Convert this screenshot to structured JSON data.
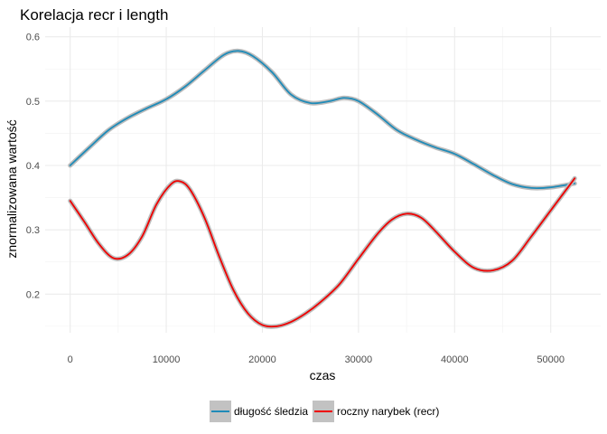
{
  "chart_data": {
    "type": "line",
    "title": "Korelacja recr i length",
    "xlabel": "czas",
    "ylabel": "znormalizowana wartość",
    "xlim": [
      -2600,
      55200
    ],
    "ylim": [
      0.14,
      0.615
    ],
    "xticks": [
      0,
      10000,
      20000,
      30000,
      40000,
      50000
    ],
    "yticks": [
      0.2,
      0.3,
      0.4,
      0.5,
      0.6
    ],
    "grid": true,
    "legend": "bottom",
    "series": [
      {
        "name": "długość śledzia",
        "color": "#1f8bb8",
        "x": [
          0,
          2000,
          4000,
          6000,
          8000,
          10000,
          12000,
          14000,
          16000,
          17500,
          19000,
          21000,
          23000,
          25000,
          27000,
          28500,
          30000,
          32000,
          34000,
          36000,
          38000,
          40000,
          42000,
          44000,
          46000,
          48000,
          50000,
          52500
        ],
        "y": [
          0.4,
          0.428,
          0.455,
          0.474,
          0.489,
          0.503,
          0.523,
          0.548,
          0.572,
          0.578,
          0.57,
          0.545,
          0.51,
          0.497,
          0.5,
          0.505,
          0.5,
          0.479,
          0.455,
          0.44,
          0.428,
          0.418,
          0.402,
          0.385,
          0.371,
          0.365,
          0.366,
          0.372
        ]
      },
      {
        "name": "roczny narybek (recr)",
        "color": "#ee0000",
        "x": [
          0,
          1500,
          3000,
          4500,
          6000,
          7500,
          9000,
          10500,
          11500,
          12500,
          14000,
          15500,
          17000,
          18500,
          20000,
          21500,
          23000,
          24500,
          26000,
          28000,
          30000,
          32000,
          33500,
          35000,
          36500,
          38000,
          40000,
          42000,
          44000,
          46000,
          48000,
          50000,
          52500
        ],
        "y": [
          0.345,
          0.312,
          0.278,
          0.256,
          0.261,
          0.29,
          0.34,
          0.371,
          0.375,
          0.362,
          0.318,
          0.259,
          0.206,
          0.17,
          0.152,
          0.15,
          0.157,
          0.17,
          0.187,
          0.215,
          0.255,
          0.294,
          0.316,
          0.325,
          0.319,
          0.298,
          0.266,
          0.241,
          0.237,
          0.252,
          0.29,
          0.33,
          0.38
        ]
      }
    ]
  }
}
